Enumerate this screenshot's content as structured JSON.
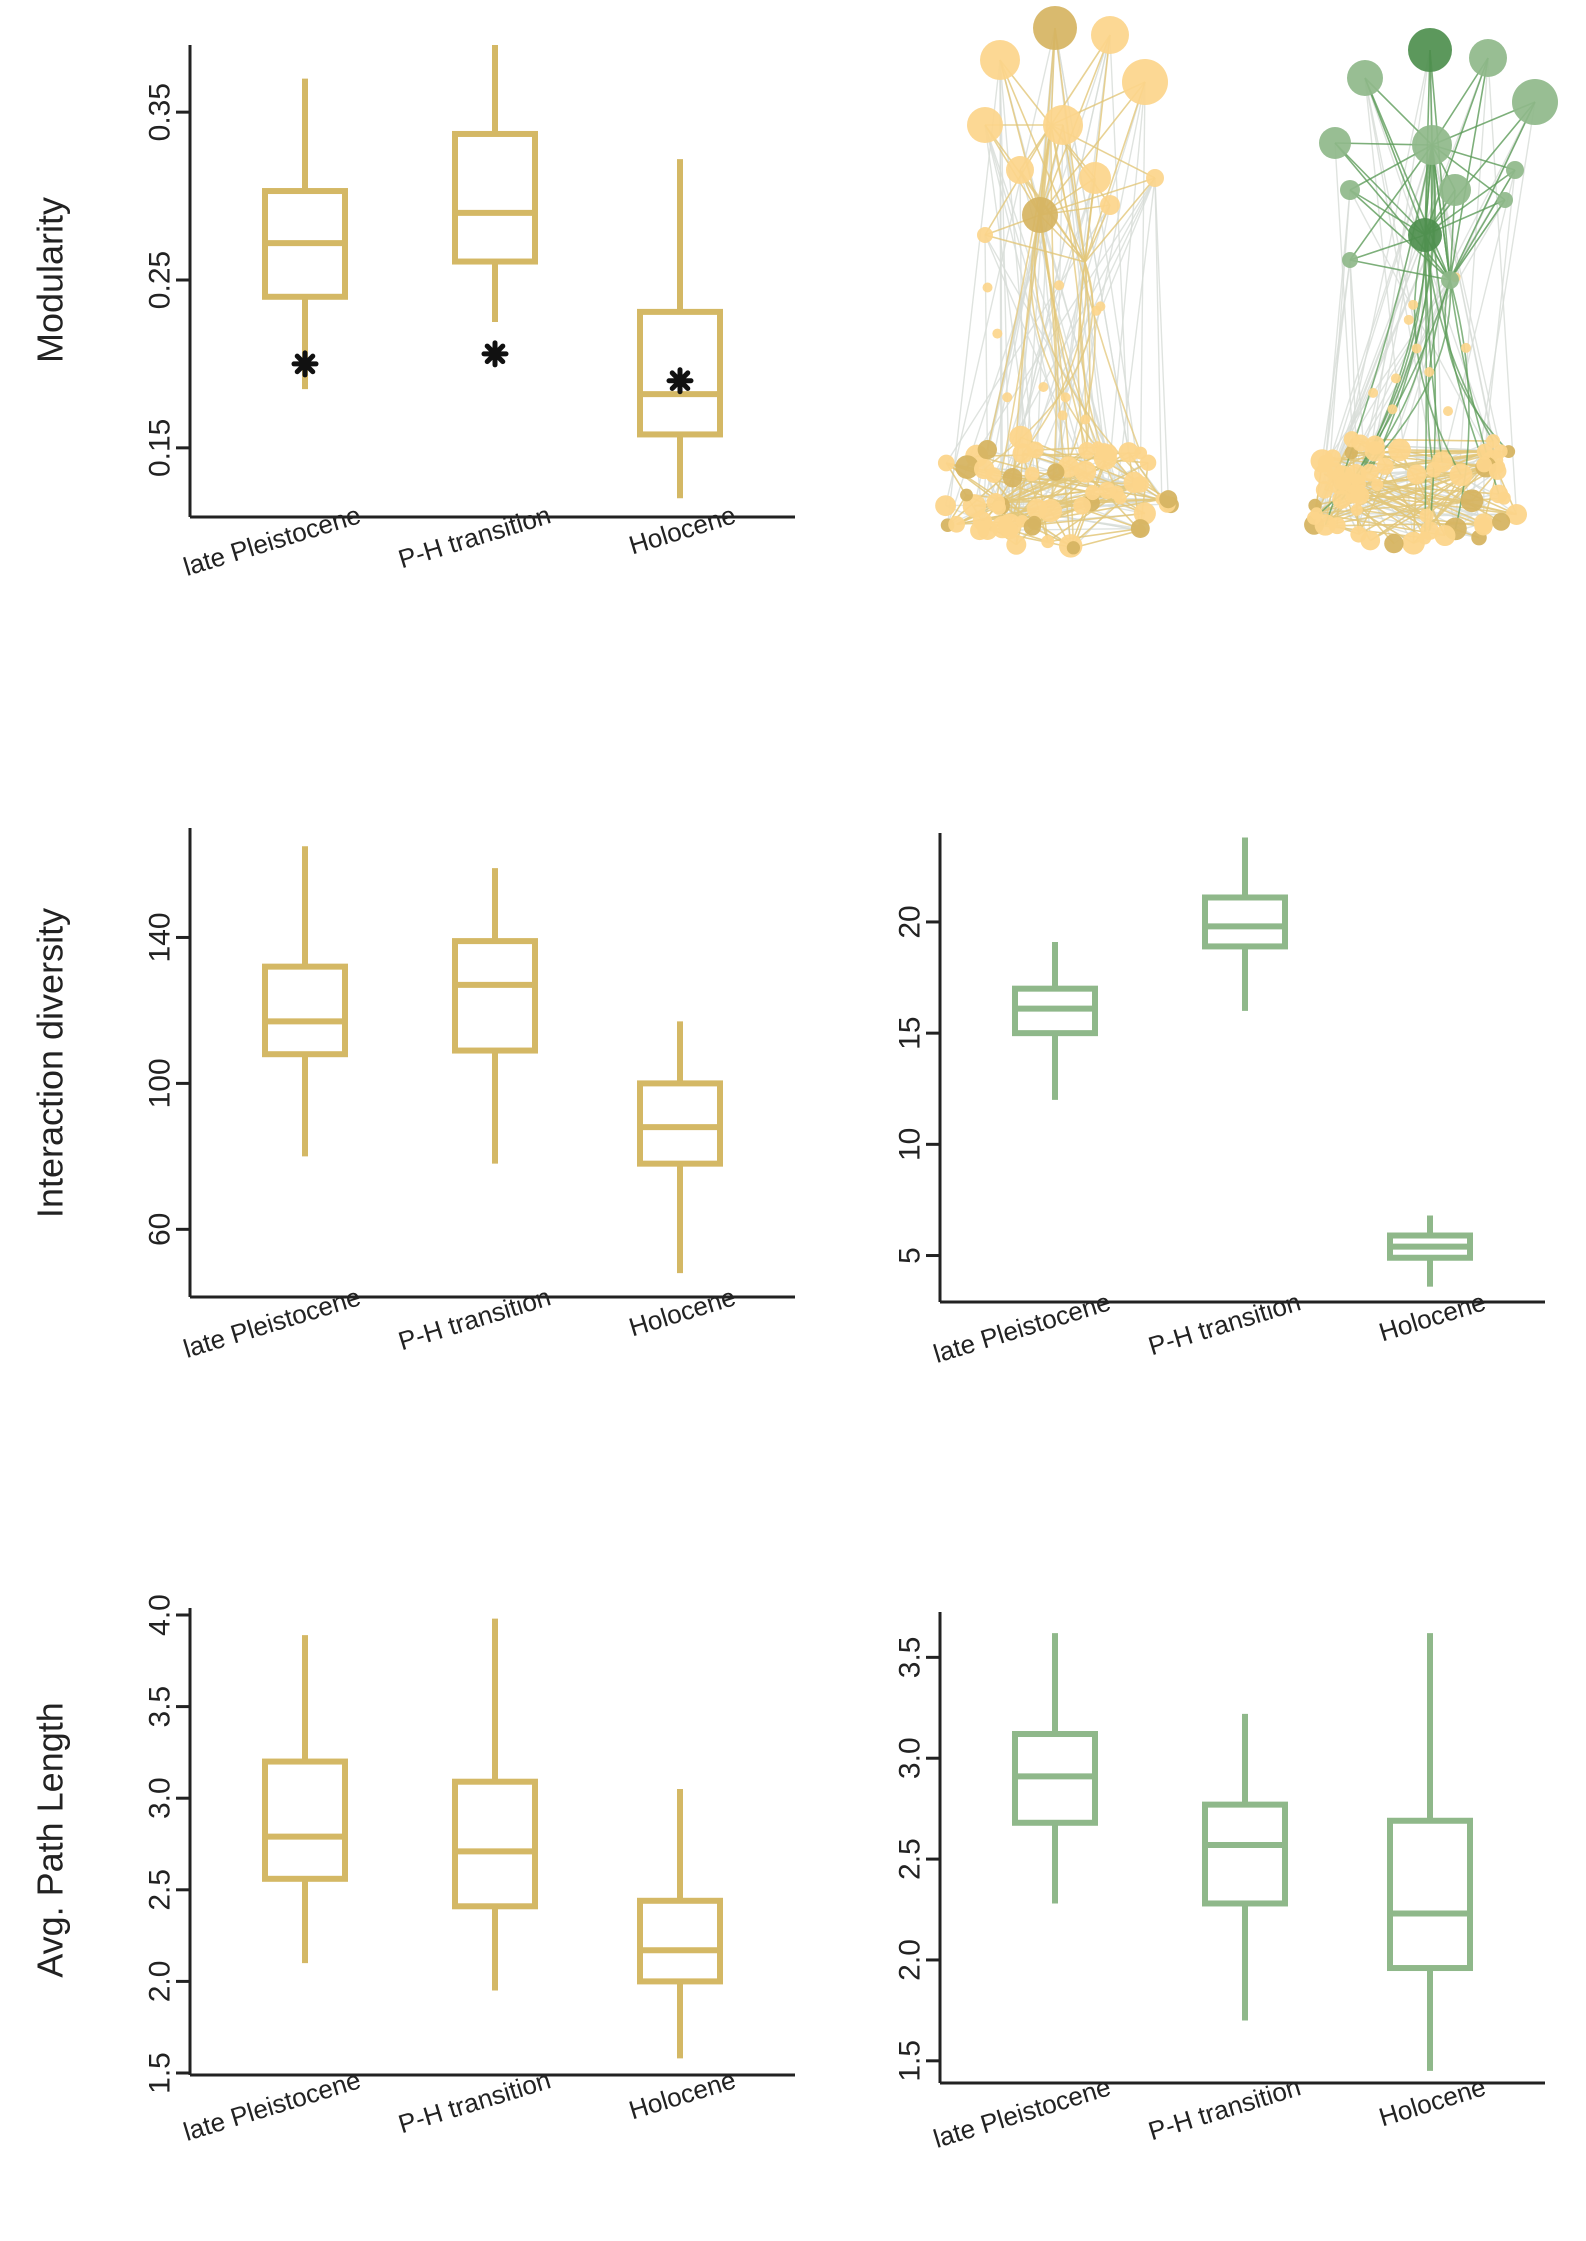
{
  "colors": {
    "gold": "#d4b865",
    "green": "#8fb88a",
    "node_light_gold": "#fcd58b",
    "node_dark_gold": "#d6b462",
    "node_light_green": "#8fb88a",
    "node_dark_green": "#4e8f4e",
    "edge_grey": "#d8ddd8"
  },
  "chart_data": [
    {
      "id": "modularity",
      "type": "box",
      "ylabel": "Modularity",
      "categories": [
        "late Pleistocene",
        "P-H transition",
        "Holocene"
      ],
      "ylim": [
        0.11,
        0.39
      ],
      "yticks": [
        "0.15",
        "0.25",
        "0.35"
      ],
      "ytick_values": [
        0.15,
        0.25,
        0.35
      ],
      "boxes": [
        {
          "whisker_low": 0.185,
          "q1": 0.24,
          "median": 0.272,
          "q3": 0.303,
          "whisker_high": 0.37
        },
        {
          "whisker_low": 0.225,
          "q1": 0.261,
          "median": 0.29,
          "q3": 0.337,
          "whisker_high": 0.39
        },
        {
          "whisker_low": 0.12,
          "q1": 0.158,
          "median": 0.182,
          "q3": 0.231,
          "whisker_high": 0.322
        }
      ],
      "observed_points": [
        0.2,
        0.206,
        0.19
      ],
      "color": "gold"
    },
    {
      "id": "interaction-diversity-gold",
      "type": "box",
      "ylabel": "Interaction diversity",
      "categories": [
        "late Pleistocene",
        "P-H transition",
        "Holocene"
      ],
      "ylim": [
        42,
        170
      ],
      "yticks": [
        "60",
        "100",
        "140"
      ],
      "ytick_values": [
        60,
        100,
        140
      ],
      "boxes": [
        {
          "whisker_low": 80,
          "q1": 108,
          "median": 117,
          "q3": 132,
          "whisker_high": 165
        },
        {
          "whisker_low": 78,
          "q1": 109,
          "median": 127,
          "q3": 139,
          "whisker_high": 159
        },
        {
          "whisker_low": 48,
          "q1": 78,
          "median": 88,
          "q3": 100,
          "whisker_high": 117
        }
      ],
      "color": "gold"
    },
    {
      "id": "interaction-diversity-green",
      "type": "box",
      "ylabel": "",
      "categories": [
        "late Pleistocene",
        "P-H transition",
        "Holocene"
      ],
      "ylim": [
        3,
        24
      ],
      "yticks": [
        "5",
        "10",
        "15",
        "20"
      ],
      "ytick_values": [
        5,
        10,
        15,
        20
      ],
      "boxes": [
        {
          "whisker_low": 12,
          "q1": 15,
          "median": 16.1,
          "q3": 17,
          "whisker_high": 19.1
        },
        {
          "whisker_low": 16,
          "q1": 18.9,
          "median": 19.8,
          "q3": 21.1,
          "whisker_high": 23.8
        },
        {
          "whisker_low": 3.6,
          "q1": 4.9,
          "median": 5.4,
          "q3": 5.9,
          "whisker_high": 6.8
        }
      ],
      "color": "green"
    },
    {
      "id": "path-length-gold",
      "type": "box",
      "ylabel": "Avg. Path Length",
      "categories": [
        "late Pleistocene",
        "P-H transition",
        "Holocene"
      ],
      "ylim": [
        1.5,
        4.0
      ],
      "yticks": [
        "1.5",
        "2.0",
        "2.5",
        "3.0",
        "3.5",
        "4.0"
      ],
      "ytick_values": [
        1.5,
        2.0,
        2.5,
        3.0,
        3.5,
        4.0
      ],
      "boxes": [
        {
          "whisker_low": 2.1,
          "q1": 2.56,
          "median": 2.79,
          "q3": 3.2,
          "whisker_high": 3.89
        },
        {
          "whisker_low": 1.95,
          "q1": 2.41,
          "median": 2.71,
          "q3": 3.09,
          "whisker_high": 3.98
        },
        {
          "whisker_low": 1.58,
          "q1": 2.0,
          "median": 2.17,
          "q3": 2.44,
          "whisker_high": 3.05
        }
      ],
      "color": "gold"
    },
    {
      "id": "path-length-green",
      "type": "box",
      "ylabel": "",
      "categories": [
        "late Pleistocene",
        "P-H transition",
        "Holocene"
      ],
      "ylim": [
        1.4,
        3.7
      ],
      "yticks": [
        "1.5",
        "2.0",
        "2.5",
        "3.0",
        "3.5"
      ],
      "ytick_values": [
        1.5,
        2.0,
        2.5,
        3.0,
        3.5
      ],
      "boxes": [
        {
          "whisker_low": 2.28,
          "q1": 2.68,
          "median": 2.91,
          "q3": 3.12,
          "whisker_high": 3.62
        },
        {
          "whisker_low": 1.7,
          "q1": 2.28,
          "median": 2.57,
          "q3": 2.77,
          "whisker_high": 3.22
        },
        {
          "whisker_low": 1.45,
          "q1": 1.96,
          "median": 2.23,
          "q3": 2.69,
          "whisker_high": 3.62
        }
      ],
      "color": "green"
    }
  ],
  "networks": [
    {
      "id": "network-left",
      "highlight": "gold"
    },
    {
      "id": "network-right",
      "highlight": "green"
    }
  ]
}
